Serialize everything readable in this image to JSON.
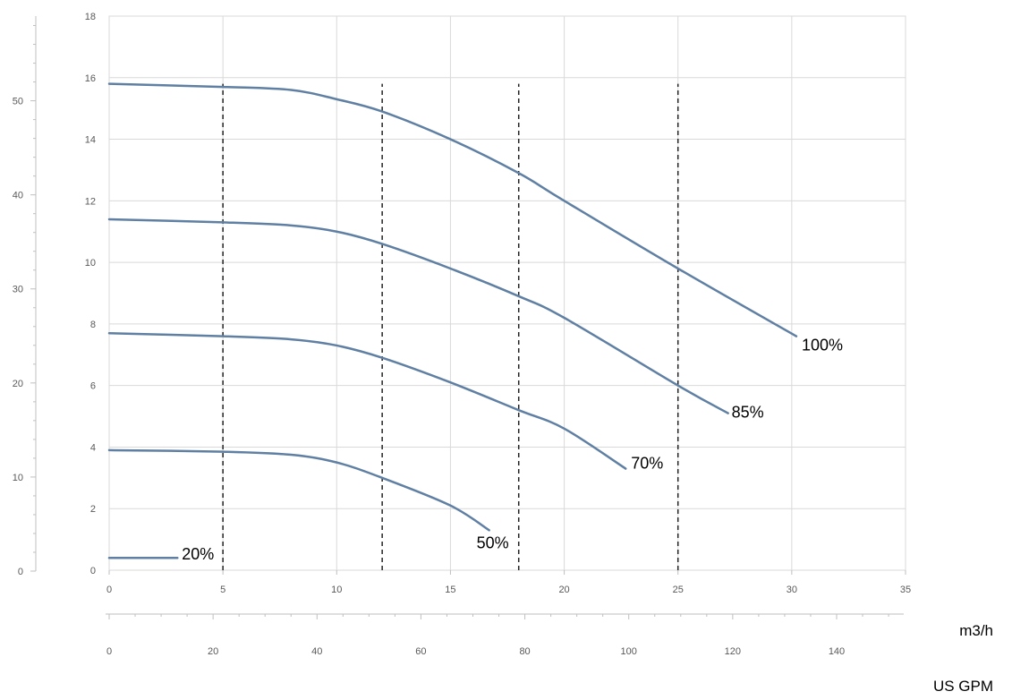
{
  "chart_data": {
    "type": "line",
    "x_primary": {
      "label": "m3/h",
      "ticks": [
        0,
        5,
        10,
        15,
        20,
        25,
        30,
        35
      ],
      "range": [
        0,
        35
      ]
    },
    "x_secondary": {
      "label": "US GPM",
      "ticks": [
        0,
        20,
        40,
        60,
        80,
        100,
        120,
        140
      ],
      "range": [
        0,
        154
      ]
    },
    "y_primary": {
      "ticks": [
        0,
        2,
        4,
        6,
        8,
        10,
        12,
        14,
        16,
        18
      ],
      "range": [
        0,
        18
      ]
    },
    "y_secondary": {
      "ticks": [
        0,
        10,
        20,
        30,
        40,
        50
      ],
      "range": [
        0,
        59
      ]
    },
    "grid": true,
    "series": [
      {
        "name": "100%",
        "points": [
          [
            0,
            15.8
          ],
          [
            5,
            15.7
          ],
          [
            8,
            15.6
          ],
          [
            10,
            15.3
          ],
          [
            12,
            14.9
          ],
          [
            15,
            14.0
          ],
          [
            18,
            12.9
          ],
          [
            20,
            12.0
          ],
          [
            25,
            9.8
          ],
          [
            30.2,
            7.6
          ]
        ]
      },
      {
        "name": "85%",
        "points": [
          [
            0,
            11.4
          ],
          [
            5,
            11.3
          ],
          [
            8,
            11.2
          ],
          [
            10,
            11.0
          ],
          [
            12,
            10.6
          ],
          [
            15,
            9.8
          ],
          [
            18,
            8.9
          ],
          [
            20,
            8.2
          ],
          [
            25,
            6.0
          ],
          [
            27.2,
            5.1
          ]
        ]
      },
      {
        "name": "70%",
        "points": [
          [
            0,
            7.7
          ],
          [
            5,
            7.6
          ],
          [
            8,
            7.5
          ],
          [
            10,
            7.3
          ],
          [
            12,
            6.9
          ],
          [
            15,
            6.1
          ],
          [
            18,
            5.2
          ],
          [
            20,
            4.6
          ],
          [
            22.7,
            3.3
          ]
        ]
      },
      {
        "name": "50%",
        "points": [
          [
            0,
            3.9
          ],
          [
            5,
            3.85
          ],
          [
            8,
            3.75
          ],
          [
            10,
            3.5
          ],
          [
            12,
            3.0
          ],
          [
            15,
            2.1
          ],
          [
            16.7,
            1.3
          ]
        ]
      },
      {
        "name": "20%",
        "points": [
          [
            0,
            0.4
          ],
          [
            3.0,
            0.4
          ]
        ]
      }
    ],
    "reference_lines_x": [
      5,
      12,
      18,
      25
    ]
  }
}
